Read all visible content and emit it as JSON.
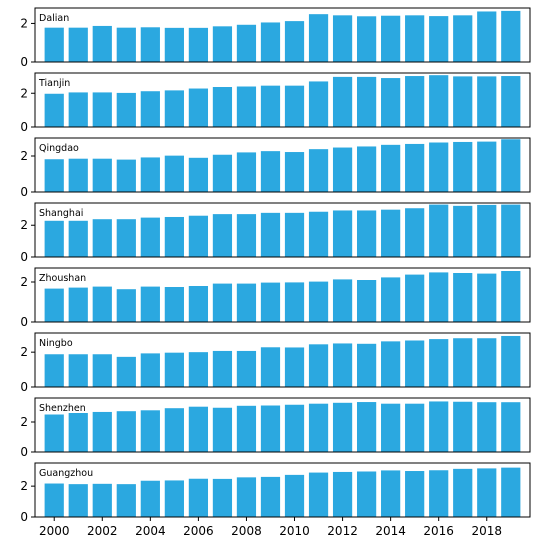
{
  "chart_data": {
    "type": "bar",
    "layout": "small-multiples",
    "bar_color": "#2ba8e0",
    "x": [
      2000,
      2001,
      2002,
      2003,
      2004,
      2005,
      2006,
      2007,
      2008,
      2009,
      2010,
      2011,
      2012,
      2013,
      2014,
      2015,
      2016,
      2017,
      2018,
      2019
    ],
    "x_ticks": [
      2000,
      2002,
      2004,
      2006,
      2008,
      2010,
      2012,
      2014,
      2016,
      2018
    ],
    "y_ticks": [
      0,
      2
    ],
    "panels": [
      {
        "title": "Dalian",
        "ylim": [
          0,
          2.8
        ],
        "values": [
          1.78,
          1.78,
          1.87,
          1.78,
          1.8,
          1.77,
          1.77,
          1.85,
          1.93,
          2.05,
          2.12,
          2.48,
          2.42,
          2.37,
          2.4,
          2.42,
          2.38,
          2.42,
          2.62,
          2.65
        ]
      },
      {
        "title": "Tianjin",
        "ylim": [
          0,
          3.2
        ],
        "values": [
          1.97,
          2.05,
          2.05,
          2.02,
          2.12,
          2.17,
          2.28,
          2.37,
          2.4,
          2.45,
          2.45,
          2.7,
          2.97,
          2.97,
          2.9,
          3.02,
          3.07,
          3.0,
          3.0,
          3.02
        ]
      },
      {
        "title": "Qingdao",
        "ylim": [
          0,
          3.0
        ],
        "values": [
          1.82,
          1.85,
          1.85,
          1.8,
          1.92,
          2.02,
          1.9,
          2.07,
          2.2,
          2.27,
          2.22,
          2.38,
          2.47,
          2.53,
          2.62,
          2.67,
          2.75,
          2.78,
          2.8,
          2.93
        ]
      },
      {
        "title": "Shanghai",
        "ylim": [
          0,
          3.4
        ],
        "values": [
          2.28,
          2.28,
          2.38,
          2.38,
          2.48,
          2.52,
          2.6,
          2.7,
          2.7,
          2.78,
          2.78,
          2.85,
          2.93,
          2.93,
          2.98,
          3.07,
          3.3,
          3.22,
          3.28,
          3.3
        ]
      },
      {
        "title": "Zhoushan",
        "ylim": [
          0,
          2.7
        ],
        "values": [
          1.67,
          1.72,
          1.77,
          1.64,
          1.77,
          1.75,
          1.8,
          1.92,
          1.92,
          1.97,
          1.98,
          2.02,
          2.13,
          2.1,
          2.23,
          2.37,
          2.48,
          2.45,
          2.42,
          2.55
        ]
      },
      {
        "title": "Ningbo",
        "ylim": [
          0,
          3.1
        ],
        "values": [
          1.88,
          1.88,
          1.88,
          1.73,
          1.93,
          1.97,
          2.0,
          2.07,
          2.07,
          2.28,
          2.27,
          2.45,
          2.5,
          2.48,
          2.62,
          2.67,
          2.75,
          2.8,
          2.8,
          2.93
        ]
      },
      {
        "title": "Shenzhen",
        "ylim": [
          0,
          3.6
        ],
        "values": [
          2.5,
          2.6,
          2.67,
          2.72,
          2.78,
          2.92,
          3.02,
          2.95,
          3.08,
          3.1,
          3.15,
          3.22,
          3.28,
          3.33,
          3.22,
          3.22,
          3.37,
          3.35,
          3.32,
          3.32
        ]
      },
      {
        "title": "Guangzhou",
        "ylim": [
          0,
          3.5
        ],
        "values": [
          2.17,
          2.13,
          2.15,
          2.13,
          2.35,
          2.37,
          2.48,
          2.47,
          2.57,
          2.6,
          2.73,
          2.88,
          2.92,
          2.95,
          3.02,
          2.98,
          3.03,
          3.12,
          3.15,
          3.2
        ]
      }
    ]
  }
}
